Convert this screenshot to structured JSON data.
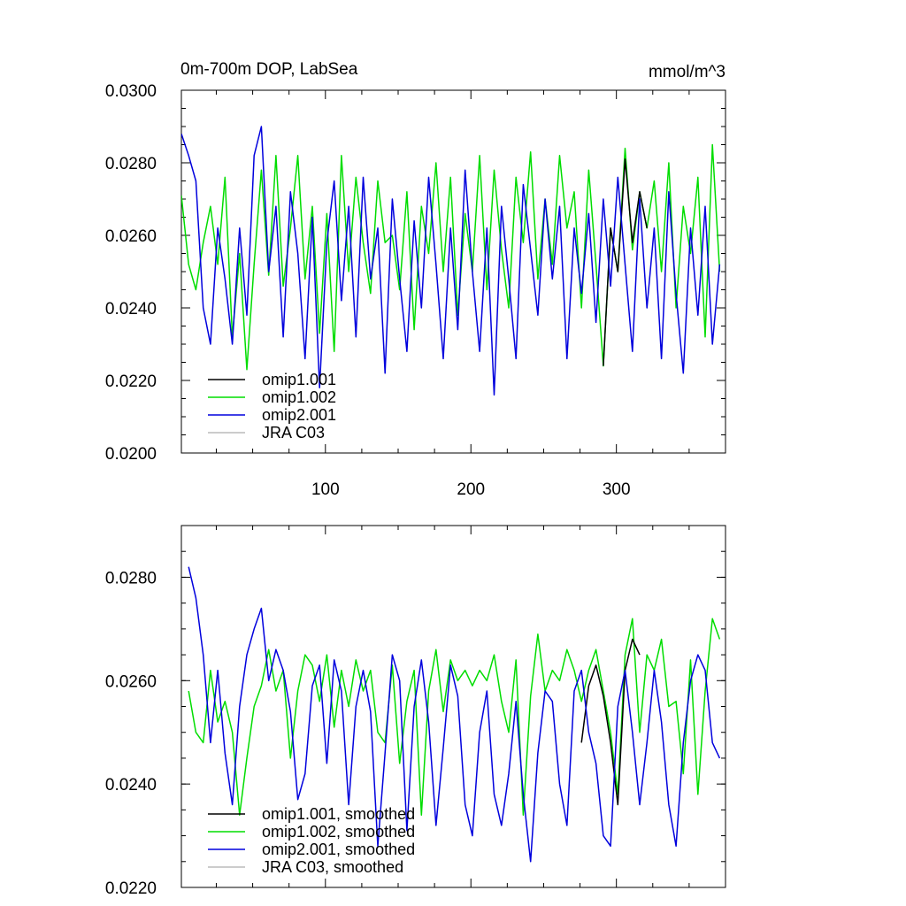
{
  "chart_data": [
    {
      "type": "line",
      "title": "0m-700m DOP, LabSea",
      "units": "mmol/m^3",
      "xlim": [
        1,
        375
      ],
      "ylim": [
        0.02,
        0.03
      ],
      "xticks": [
        100,
        200,
        300
      ],
      "xtick_labels": [
        "100",
        "200",
        "300"
      ],
      "yticks": [
        0.02,
        0.022,
        0.024,
        0.026,
        0.028,
        0.03
      ],
      "ytick_labels": [
        "0.0200",
        "0.0220",
        "0.0240",
        "0.0260",
        "0.0280",
        "0.0300"
      ],
      "legend_position": "bottom-left",
      "series": [
        {
          "name": "omip1.001",
          "color": "#000000"
        },
        {
          "name": "omip1.002",
          "color": "#00dd00"
        },
        {
          "name": "omip2.001",
          "color": "#0000dd"
        },
        {
          "name": "JRA C03",
          "color": "#bbbbbb"
        }
      ],
      "x": [
        1,
        6,
        11,
        16,
        21,
        26,
        31,
        36,
        41,
        46,
        51,
        56,
        61,
        66,
        71,
        76,
        81,
        86,
        91,
        96,
        101,
        106,
        111,
        116,
        121,
        126,
        131,
        136,
        141,
        146,
        151,
        156,
        161,
        166,
        171,
        176,
        181,
        186,
        191,
        196,
        201,
        206,
        211,
        216,
        221,
        226,
        231,
        236,
        241,
        246,
        251,
        256,
        261,
        266,
        271,
        276,
        281,
        286,
        291,
        296,
        301,
        306,
        311,
        316,
        321,
        326,
        331,
        336,
        341,
        346,
        351,
        356,
        361,
        366,
        371
      ],
      "values": {
        "omip1.001": [
          null,
          null,
          null,
          null,
          null,
          null,
          null,
          null,
          null,
          null,
          null,
          null,
          null,
          null,
          null,
          null,
          null,
          null,
          null,
          null,
          null,
          null,
          null,
          null,
          null,
          null,
          null,
          null,
          null,
          null,
          null,
          null,
          null,
          null,
          null,
          null,
          null,
          null,
          null,
          null,
          null,
          null,
          null,
          null,
          null,
          null,
          null,
          null,
          null,
          null,
          null,
          null,
          null,
          null,
          null,
          null,
          null,
          null,
          0.0224,
          0.0262,
          0.025,
          0.0281,
          0.0258,
          0.0272,
          0.0262,
          null,
          null,
          null,
          null,
          null,
          null,
          null,
          null,
          null,
          null
        ],
        "omip1.002": [
          0.0271,
          0.0252,
          0.0245,
          0.0258,
          0.0268,
          0.0252,
          0.0276,
          0.0232,
          0.0255,
          0.0223,
          0.0252,
          0.0278,
          0.0249,
          0.0282,
          0.0246,
          0.0262,
          0.0282,
          0.0248,
          0.0268,
          0.0233,
          0.0266,
          0.0228,
          0.0282,
          0.025,
          0.0276,
          0.0258,
          0.0244,
          0.0275,
          0.0258,
          0.026,
          0.0245,
          0.0272,
          0.0234,
          0.0268,
          0.0255,
          0.028,
          0.025,
          0.0276,
          0.0238,
          0.0266,
          0.025,
          0.0282,
          0.0245,
          0.0278,
          0.0256,
          0.024,
          0.0276,
          0.0258,
          0.0283,
          0.0248,
          0.027,
          0.0252,
          0.0282,
          0.0262,
          0.0272,
          0.024,
          0.0278,
          0.0252,
          0.0224,
          0.0262,
          0.025,
          0.0284,
          0.0256,
          0.0272,
          0.0262,
          0.0275,
          0.025,
          0.028,
          0.024,
          0.0268,
          0.0255,
          0.0276,
          0.0232,
          0.0285,
          0.025
        ],
        "omip2.001": [
          0.0288,
          0.0282,
          0.0275,
          0.024,
          0.023,
          0.0262,
          0.0248,
          0.023,
          0.0262,
          0.0238,
          0.0282,
          0.029,
          0.025,
          0.0268,
          0.0232,
          0.0272,
          0.0255,
          0.0226,
          0.0265,
          0.0218,
          0.0258,
          0.0275,
          0.0242,
          0.0268,
          0.0232,
          0.0276,
          0.0248,
          0.0262,
          0.0222,
          0.027,
          0.0248,
          0.0228,
          0.0264,
          0.024,
          0.0276,
          0.0252,
          0.0226,
          0.0262,
          0.0234,
          0.0278,
          0.025,
          0.0228,
          0.0262,
          0.0216,
          0.0268,
          0.0248,
          0.0226,
          0.0274,
          0.0256,
          0.0238,
          0.027,
          0.0248,
          0.0268,
          0.0226,
          0.0262,
          0.0244,
          0.0266,
          0.0236,
          0.027,
          0.0246,
          0.0276,
          0.0252,
          0.0228,
          0.027,
          0.024,
          0.0262,
          0.0226,
          0.0272,
          0.0244,
          0.0222,
          0.0262,
          0.0238,
          0.0268,
          0.023,
          0.0252
        ],
        "JRA C03": []
      }
    },
    {
      "type": "line",
      "title": "",
      "units": "",
      "xlim": [
        1,
        375
      ],
      "ylim": [
        0.022,
        0.029
      ],
      "xticks": [
        100,
        200,
        300
      ],
      "xtick_labels": [
        "",
        "",
        ""
      ],
      "yticks": [
        0.022,
        0.024,
        0.026,
        0.028
      ],
      "ytick_labels": [
        "0.0220",
        "0.0240",
        "0.0260",
        "0.0280"
      ],
      "legend_position": "bottom-left",
      "series": [
        {
          "name": "omip1.001, smoothed",
          "color": "#000000"
        },
        {
          "name": "omip1.002, smoothed",
          "color": "#00dd00"
        },
        {
          "name": "omip2.001, smoothed",
          "color": "#0000dd"
        },
        {
          "name": "JRA C03, smoothed",
          "color": "#bbbbbb"
        }
      ],
      "x": [
        6,
        11,
        16,
        21,
        26,
        31,
        36,
        41,
        46,
        51,
        56,
        61,
        66,
        71,
        76,
        81,
        86,
        91,
        96,
        101,
        106,
        111,
        116,
        121,
        126,
        131,
        136,
        141,
        146,
        151,
        156,
        161,
        166,
        171,
        176,
        181,
        186,
        191,
        196,
        201,
        206,
        211,
        216,
        221,
        226,
        231,
        236,
        241,
        246,
        251,
        256,
        261,
        266,
        271,
        276,
        281,
        286,
        291,
        296,
        301,
        306,
        311,
        316,
        321,
        326,
        331,
        336,
        341,
        346,
        351,
        356,
        361,
        366,
        371
      ],
      "values": {
        "omip1.001, smoothed": [
          null,
          null,
          null,
          null,
          null,
          null,
          null,
          null,
          null,
          null,
          null,
          null,
          null,
          null,
          null,
          null,
          null,
          null,
          null,
          null,
          null,
          null,
          null,
          null,
          null,
          null,
          null,
          null,
          null,
          null,
          null,
          null,
          null,
          null,
          null,
          null,
          null,
          null,
          null,
          null,
          null,
          null,
          null,
          null,
          null,
          null,
          null,
          null,
          null,
          null,
          null,
          null,
          null,
          null,
          0.0248,
          0.0259,
          0.0263,
          0.0257,
          0.0248,
          0.0236,
          0.0262,
          0.0268,
          0.0265,
          null,
          null,
          null,
          null,
          null,
          null,
          null,
          null,
          null,
          null,
          null
        ],
        "omip1.002, smoothed": [
          0.0258,
          0.025,
          0.0248,
          0.0262,
          0.0252,
          0.0256,
          0.025,
          0.0234,
          0.0245,
          0.0255,
          0.0259,
          0.0266,
          0.0258,
          0.0262,
          0.0245,
          0.0258,
          0.0265,
          0.0263,
          0.0256,
          0.0265,
          0.0251,
          0.0262,
          0.0255,
          0.0264,
          0.0258,
          0.0262,
          0.025,
          0.0248,
          0.0263,
          0.0244,
          0.0256,
          0.0262,
          0.0234,
          0.0258,
          0.0266,
          0.0254,
          0.0264,
          0.026,
          0.0262,
          0.0259,
          0.0262,
          0.026,
          0.0265,
          0.0256,
          0.025,
          0.0264,
          0.0234,
          0.0257,
          0.0269,
          0.0258,
          0.0262,
          0.026,
          0.0266,
          0.0262,
          0.0256,
          0.0262,
          0.0266,
          0.0258,
          0.025,
          0.0238,
          0.0265,
          0.0272,
          0.025,
          0.0265,
          0.0262,
          0.0268,
          0.0255,
          0.0256,
          0.0242,
          0.0264,
          0.0238,
          0.0258,
          0.0272,
          0.0268
        ],
        "omip2.001, smoothed": [
          0.0282,
          0.0276,
          0.0265,
          0.0248,
          0.0262,
          0.0246,
          0.0236,
          0.0255,
          0.0265,
          0.027,
          0.0274,
          0.026,
          0.0266,
          0.0262,
          0.0254,
          0.0237,
          0.0242,
          0.0259,
          0.0263,
          0.0244,
          0.0264,
          0.0258,
          0.0236,
          0.0255,
          0.0262,
          0.0254,
          0.0228,
          0.0246,
          0.0265,
          0.026,
          0.0231,
          0.0255,
          0.0264,
          0.0252,
          0.0232,
          0.0247,
          0.0263,
          0.0257,
          0.0236,
          0.023,
          0.025,
          0.0258,
          0.0238,
          0.0232,
          0.0242,
          0.0256,
          0.0238,
          0.0225,
          0.0246,
          0.0258,
          0.0256,
          0.024,
          0.0232,
          0.0258,
          0.0262,
          0.025,
          0.0244,
          0.023,
          0.0228,
          0.0255,
          0.0262,
          0.025,
          0.0236,
          0.0248,
          0.0262,
          0.0252,
          0.0236,
          0.0228,
          0.0248,
          0.026,
          0.0265,
          0.0262,
          0.0248,
          0.0245
        ],
        "JRA C03, smoothed": []
      }
    }
  ]
}
